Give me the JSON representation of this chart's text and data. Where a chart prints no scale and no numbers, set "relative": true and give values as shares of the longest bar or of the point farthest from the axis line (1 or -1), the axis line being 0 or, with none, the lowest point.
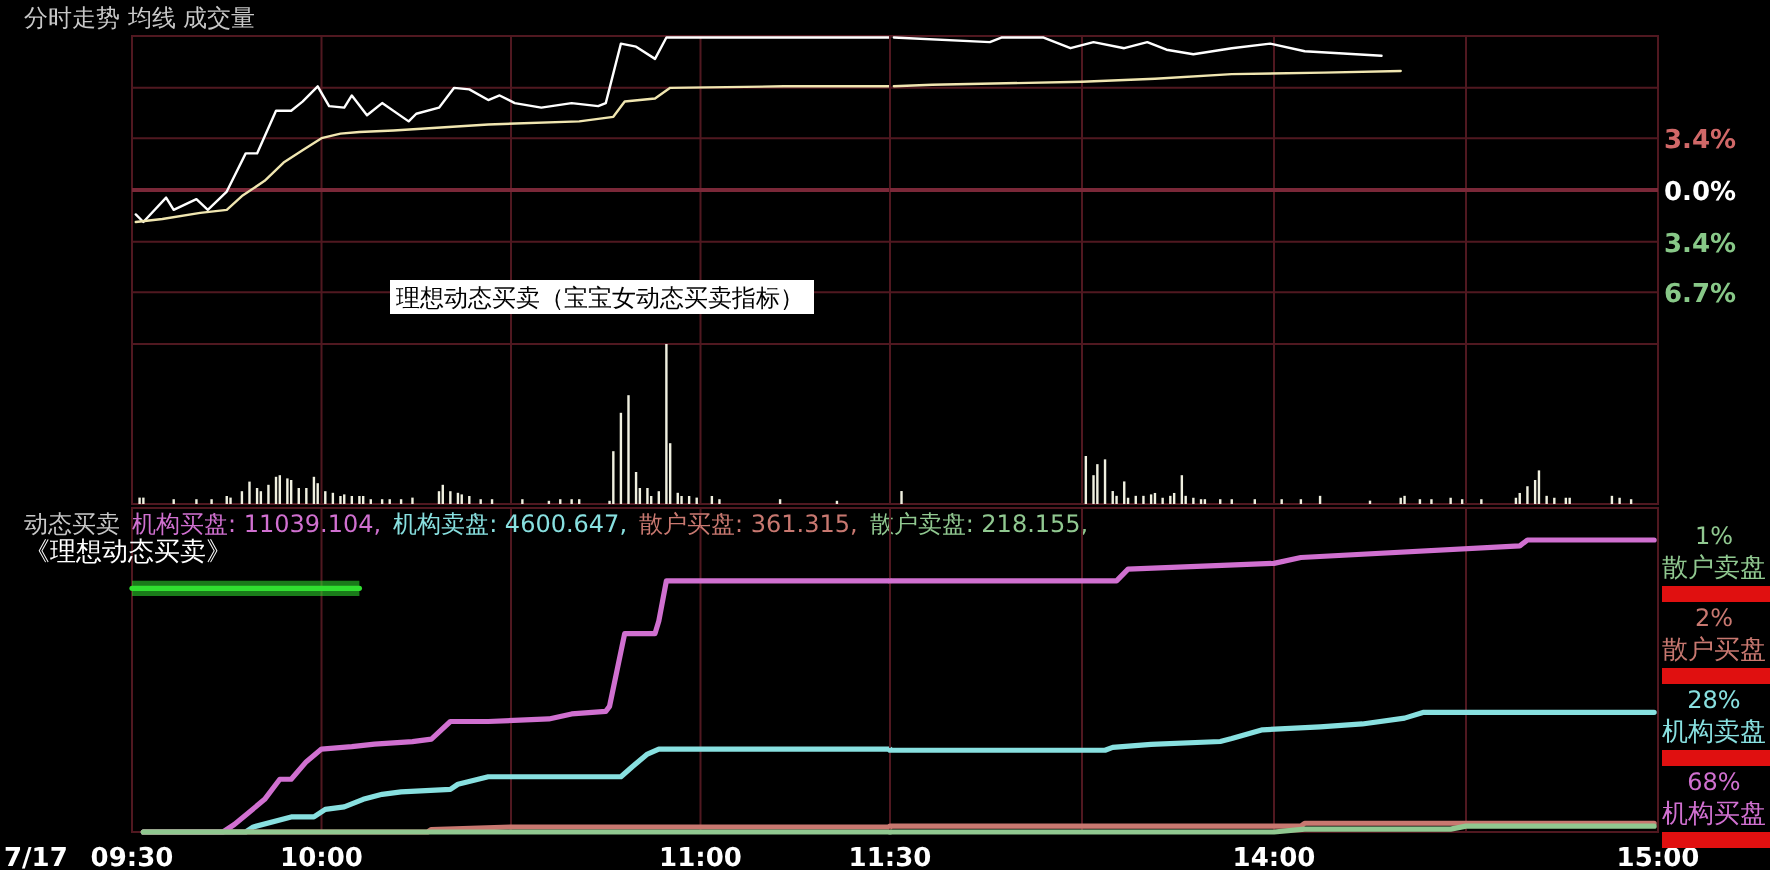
{
  "chart_data": [
    {
      "type": "line",
      "title": "分时走势 均线 成交量",
      "xlim": [
        9.5,
        11.5
      ],
      "xticks": [
        {
          "value": 9.5,
          "label": null
        },
        {
          "value": 10,
          "label": null
        },
        {
          "value": 10.5,
          "label": null
        },
        {
          "value": 11,
          "label": null
        },
        {
          "value": 11.5,
          "label": null
        }
      ],
      "ylim": [
        -10.1,
        10.1
      ],
      "yticks": [
        {
          "value": 6.7,
          "label": null
        },
        {
          "value": 3.4,
          "label": null
        },
        {
          "value": 0,
          "label": null
        },
        {
          "value": -3.4,
          "label": null
        },
        {
          "value": -6.7,
          "label": null
        }
      ],
      "grid": true,
      "tick_labels": false,
      "ref_lines": [
        {
          "axis": "y",
          "value": 0,
          "color": "#7a2838"
        }
      ],
      "annotations": [
        "理想动态买卖（宝宝女动态买卖指标）"
      ],
      "series": [
        {
          "color": "#ffffff",
          "x": [
            9.51,
            9.53,
            9.59,
            9.61,
            9.67,
            9.7,
            9.75,
            9.8,
            9.83,
            9.88,
            9.92,
            9.95,
            9.99,
            10.02,
            10.06,
            10.08,
            10.12,
            10.16,
            10.23,
            10.25,
            10.31,
            10.35,
            10.39,
            10.44,
            10.47,
            10.51,
            10.58,
            10.66,
            10.73,
            10.75,
            10.79,
            10.83,
            10.88,
            10.91,
            11.12,
            11.5
          ],
          "values": [
            -1.6,
            -2.1,
            -0.5,
            -1.3,
            -0.6,
            -1.3,
            -0.1,
            2.4,
            2.4,
            5.2,
            5.2,
            5.8,
            6.8,
            5.5,
            5.4,
            6.2,
            4.9,
            5.7,
            4.5,
            5.0,
            5.4,
            6.7,
            6.6,
            5.9,
            6.2,
            5.7,
            5.4,
            5.7,
            5.5,
            5.7,
            9.6,
            9.4,
            8.6,
            10.0,
            10.0,
            10.0
          ]
        },
        {
          "color": "#f0e6b0",
          "x": [
            9.51,
            9.58,
            9.68,
            9.75,
            9.79,
            9.85,
            9.9,
            9.95,
            10.0,
            10.05,
            10.1,
            10.19,
            10.44,
            10.68,
            10.77,
            10.8,
            10.88,
            10.92,
            11.22,
            11.5
          ],
          "values": [
            -2.1,
            -1.9,
            -1.5,
            -1.3,
            -0.4,
            0.6,
            1.8,
            2.6,
            3.4,
            3.7,
            3.8,
            3.9,
            4.3,
            4.5,
            4.8,
            5.8,
            6.0,
            6.7,
            6.8,
            6.8
          ]
        }
      ]
    },
    {
      "type": "line",
      "xlim": [
        13,
        15
      ],
      "xticks": [
        {
          "value": 13,
          "label": null
        },
        {
          "value": 13.5,
          "label": null
        },
        {
          "value": 14,
          "label": null
        },
        {
          "value": 14.5,
          "label": null
        },
        {
          "value": 15,
          "label": null
        }
      ],
      "ylim": [
        -10.1,
        10.1
      ],
      "yticks": [
        {
          "value": 6.7,
          "label": null
        },
        {
          "value": 3.4,
          "label": "3.4%"
        },
        {
          "value": 0,
          "label": "0.0%"
        },
        {
          "value": -3.4,
          "label": "3.4%"
        },
        {
          "value": -6.7,
          "label": "6.7%"
        }
      ],
      "grid": true,
      "tick_labels": "y",
      "ref_lines": [
        {
          "axis": "y",
          "value": 0,
          "color": "#7a2838"
        }
      ],
      "series": [
        {
          "color": "#ffffff",
          "x": [
            13.01,
            13.26,
            13.29,
            13.4,
            13.47,
            13.53,
            13.61,
            13.67,
            13.72,
            13.79,
            13.89,
            13.99,
            14.08,
            14.28
          ],
          "values": [
            10.0,
            9.7,
            10.0,
            10.0,
            9.3,
            9.7,
            9.3,
            9.7,
            9.2,
            8.9,
            9.3,
            9.6,
            9.1,
            8.8
          ]
        },
        {
          "color": "#f0e6b0",
          "x": [
            13.01,
            13.11,
            13.5,
            13.69,
            13.89,
            14.13,
            14.33
          ],
          "values": [
            6.8,
            6.9,
            7.1,
            7.3,
            7.6,
            7.7,
            7.8
          ]
        }
      ]
    },
    {
      "type": "bar",
      "relative": true,
      "xlim": [
        9.5,
        11.5
      ],
      "xticks": [
        {
          "value": 9.5,
          "label": null
        },
        {
          "value": 10,
          "label": null
        },
        {
          "value": 10.5,
          "label": null
        },
        {
          "value": 11,
          "label": null
        },
        {
          "value": 11.5,
          "label": null
        }
      ],
      "grid": "x",
      "tick_labels": false,
      "series": [
        {
          "color": "#f0f0e0",
          "x": [
            9.52,
            9.53,
            9.61,
            9.67,
            9.71,
            9.75,
            9.76,
            9.79,
            9.81,
            9.83,
            9.84,
            9.86,
            9.88,
            9.89,
            9.91,
            9.92,
            9.94,
            9.96,
            9.98,
            9.99,
            10.01,
            10.03,
            10.05,
            10.06,
            10.08,
            10.1,
            10.11,
            10.13,
            10.16,
            10.18,
            10.21,
            10.24,
            10.31,
            10.32,
            10.34,
            10.36,
            10.37,
            10.39,
            10.42,
            10.45,
            10.53,
            10.6,
            10.63,
            10.66,
            10.68,
            10.76,
            10.77,
            10.79,
            10.81,
            10.83,
            10.84,
            10.86,
            10.87,
            10.89,
            10.91,
            10.92,
            10.94,
            10.95,
            10.97,
            10.99,
            11.03,
            11.05,
            11.21,
            11.36
          ],
          "values": [
            0.04,
            0.04,
            0.03,
            0.03,
            0.03,
            0.05,
            0.04,
            0.08,
            0.14,
            0.1,
            0.08,
            0.12,
            0.17,
            0.18,
            0.16,
            0.15,
            0.1,
            0.1,
            0.17,
            0.13,
            0.08,
            0.07,
            0.05,
            0.06,
            0.05,
            0.05,
            0.05,
            0.03,
            0.03,
            0.03,
            0.03,
            0.04,
            0.08,
            0.12,
            0.08,
            0.07,
            0.06,
            0.05,
            0.03,
            0.03,
            0.03,
            0.02,
            0.03,
            0.03,
            0.03,
            0.02,
            0.33,
            0.57,
            0.68,
            0.2,
            0.1,
            0.1,
            0.05,
            0.08,
            1,
            0.38,
            0.07,
            0.05,
            0.05,
            0.04,
            0.05,
            0.03,
            0.03,
            0.02
          ]
        }
      ]
    },
    {
      "type": "bar",
      "relative": true,
      "xlim": [
        13,
        15
      ],
      "xticks": [
        {
          "value": 13,
          "label": null
        },
        {
          "value": 13.5,
          "label": null
        },
        {
          "value": 14,
          "label": null
        },
        {
          "value": 14.5,
          "label": null
        },
        {
          "value": 15,
          "label": null
        }
      ],
      "grid": "x",
      "tick_labels": false,
      "series": [
        {
          "color": "#f0f0e0",
          "x": [
            13.03,
            13.51,
            13.53,
            13.54,
            13.56,
            13.58,
            13.59,
            13.61,
            13.62,
            13.64,
            13.66,
            13.68,
            13.69,
            13.71,
            13.73,
            13.74,
            13.76,
            13.77,
            13.79,
            13.81,
            13.82,
            13.86,
            13.89,
            13.95,
            14.02,
            14.07,
            14.12,
            14.25,
            14.33,
            14.34,
            14.38,
            14.41,
            14.46,
            14.49,
            14.54,
            14.63,
            14.64,
            14.66,
            14.68,
            14.69,
            14.71,
            14.73,
            14.76,
            14.77,
            14.88,
            14.9,
            14.93
          ],
          "values": [
            0.27,
            1,
            0.6,
            0.83,
            0.93,
            0.27,
            0.17,
            0.47,
            0.13,
            0.17,
            0.17,
            0.2,
            0.23,
            0.13,
            0.17,
            0.23,
            0.6,
            0.17,
            0.13,
            0.1,
            0.1,
            0.1,
            0.1,
            0.1,
            0.1,
            0.1,
            0.17,
            0.07,
            0.13,
            0.17,
            0.1,
            0.1,
            0.13,
            0.1,
            0.1,
            0.13,
            0.23,
            0.37,
            0.5,
            0.7,
            0.17,
            0.13,
            0.13,
            0.13,
            0.17,
            0.13,
            0.1
          ]
        }
      ]
    },
    {
      "type": "line",
      "relative": true,
      "title": "动态买卖",
      "subtitle": "《理想动态买卖》",
      "xlim": [
        9.5,
        11.5
      ],
      "xticks": [
        {
          "value": 9.5,
          "label": "09:30"
        },
        {
          "value": 10,
          "label": "10:00"
        },
        {
          "value": 10.5,
          "label": null
        },
        {
          "value": 11,
          "label": "11:00"
        },
        {
          "value": 11.5,
          "label": "11:30"
        }
      ],
      "grid": "x",
      "tick_labels": "x",
      "annotations": [
        "机构买盘: 11039.104,",
        "机构卖盘: 4600.647,",
        "散户买盘: 361.315,",
        "散户卖盘: 218.155,",
        "7/17"
      ],
      "series": [
        {
          "color": "#d070d0",
          "x": [
            9.53,
            9.74,
            9.77,
            9.81,
            9.85,
            9.89,
            9.92,
            9.96,
            10.0,
            10.08,
            10.14,
            10.24,
            10.29,
            10.34,
            10.44,
            10.6,
            10.66,
            10.75,
            10.76,
            10.8,
            10.88,
            10.89,
            10.91,
            11.5
          ],
          "values": [
            0,
            0,
            0.03,
            0.08,
            0.13,
            0.21,
            0.21,
            0.28,
            0.33,
            0.34,
            0.35,
            0.36,
            0.37,
            0.44,
            0.44,
            0.45,
            0.47,
            0.48,
            0.5,
            0.79,
            0.79,
            0.84,
            1,
            1
          ]
        },
        {
          "color": "#88e0e0",
          "x": [
            9.53,
            9.8,
            9.82,
            9.92,
            9.98,
            10.01,
            10.06,
            10.11,
            10.16,
            10.21,
            10.34,
            10.36,
            10.44,
            10.5,
            10.79,
            10.82,
            10.86,
            10.89,
            11.5
          ],
          "values": [
            0,
            0,
            0.02,
            0.06,
            0.06,
            0.09,
            0.1,
            0.13,
            0.15,
            0.16,
            0.17,
            0.19,
            0.22,
            0.22,
            0.22,
            0.26,
            0.31,
            0.33,
            0.33
          ]
        },
        {
          "color": "#c87870",
          "x": [
            9.53,
            10.28,
            10.29,
            10.5,
            11.5
          ],
          "values": [
            0,
            0,
            0.01,
            0.02,
            0.02
          ]
        },
        {
          "color": "#90c890",
          "x": [
            9.53,
            11.5
          ],
          "values": [
            0,
            0
          ]
        },
        {
          "color": "#30e030",
          "x": [
            9.5,
            10.1
          ],
          "values": [
            0.97,
            0.97
          ],
          "lower": [
            0.94,
            0.94
          ],
          "upper": [
            1,
            1
          ]
        }
      ]
    },
    {
      "type": "line",
      "relative": true,
      "xlim": [
        13,
        15
      ],
      "xticks": [
        {
          "value": 13,
          "label": null
        },
        {
          "value": 13.5,
          "label": null
        },
        {
          "value": 14,
          "label": "14:00"
        },
        {
          "value": 14.5,
          "label": null
        },
        {
          "value": 15,
          "label": "15:00"
        }
      ],
      "grid": "x",
      "tick_labels": "x",
      "annotations": [
        "68%",
        "28%",
        "2%",
        "1%"
      ],
      "series": [
        {
          "name": "机构买盘",
          "color": "#d070d0",
          "x": [
            13.0,
            13.59,
            13.62,
            14.0,
            14.07,
            14.64,
            14.66,
            14.99
          ],
          "values": [
            0.86,
            0.86,
            0.9,
            0.92,
            0.94,
            0.98,
            1,
            1
          ]
        },
        {
          "name": "机构卖盘",
          "color": "#88e0e0",
          "x": [
            13.0,
            13.56,
            13.58,
            13.68,
            13.86,
            13.89,
            13.97,
            14.12,
            14.23,
            14.34,
            14.39,
            14.99
          ],
          "values": [
            0.28,
            0.28,
            0.29,
            0.3,
            0.31,
            0.32,
            0.35,
            0.36,
            0.37,
            0.39,
            0.41,
            0.41
          ]
        },
        {
          "name": "散户买盘",
          "color": "#c87870",
          "x": [
            13.0,
            14.07,
            14.08,
            14.99
          ],
          "values": [
            0.02,
            0.02,
            0.03,
            0.03
          ]
        },
        {
          "name": "散户卖盘",
          "color": "#90c890",
          "x": [
            13.0,
            14.0,
            14.08,
            14.46,
            14.5,
            14.99
          ],
          "values": [
            0,
            0,
            0.01,
            0.01,
            0.02,
            0.02
          ]
        }
      ]
    }
  ]
}
